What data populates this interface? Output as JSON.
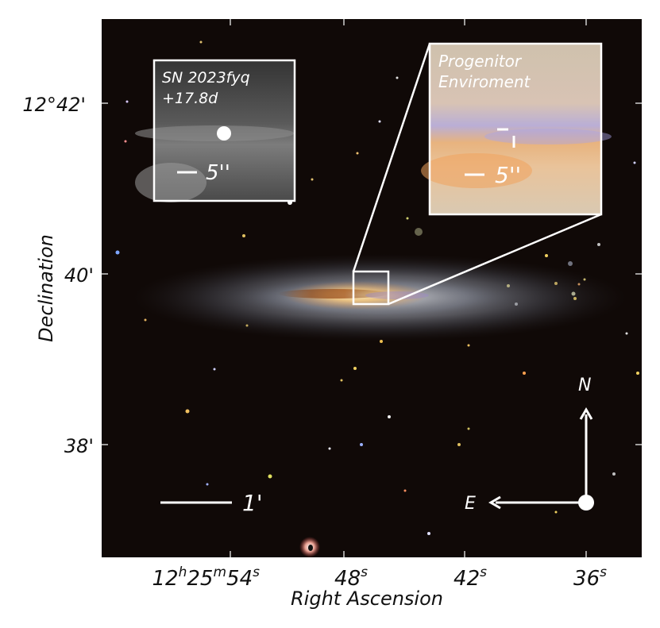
{
  "figure": {
    "main_inset": {
      "target": "SN 2023fyq",
      "epoch": "+17.8d",
      "scale_label": "5''"
    },
    "progenitor_inset": {
      "title_line1": "Progenitor",
      "title_line2": "Enviroment",
      "scale_label": "5''"
    },
    "scale_bar_label": "1'",
    "compass": {
      "north": "N",
      "east": "E"
    },
    "axes": {
      "xlabel": "Right Ascension",
      "ylabel": "Declination",
      "x_ticks": [
        {
          "h": "12",
          "hu": "h",
          "m": "25",
          "mu": "m",
          "s": "54",
          "su": "s"
        },
        {
          "s": "48",
          "su": "s"
        },
        {
          "s": "42",
          "su": "s"
        },
        {
          "s": "36",
          "su": "s"
        }
      ],
      "y_ticks": [
        "12°42'",
        "40'",
        "38'"
      ]
    },
    "colors": {
      "sky": "#0b0706",
      "galaxy_core": "#f3c37a",
      "galaxy_halo": "#8a8f9e",
      "overlay": "#ffffff"
    }
  }
}
